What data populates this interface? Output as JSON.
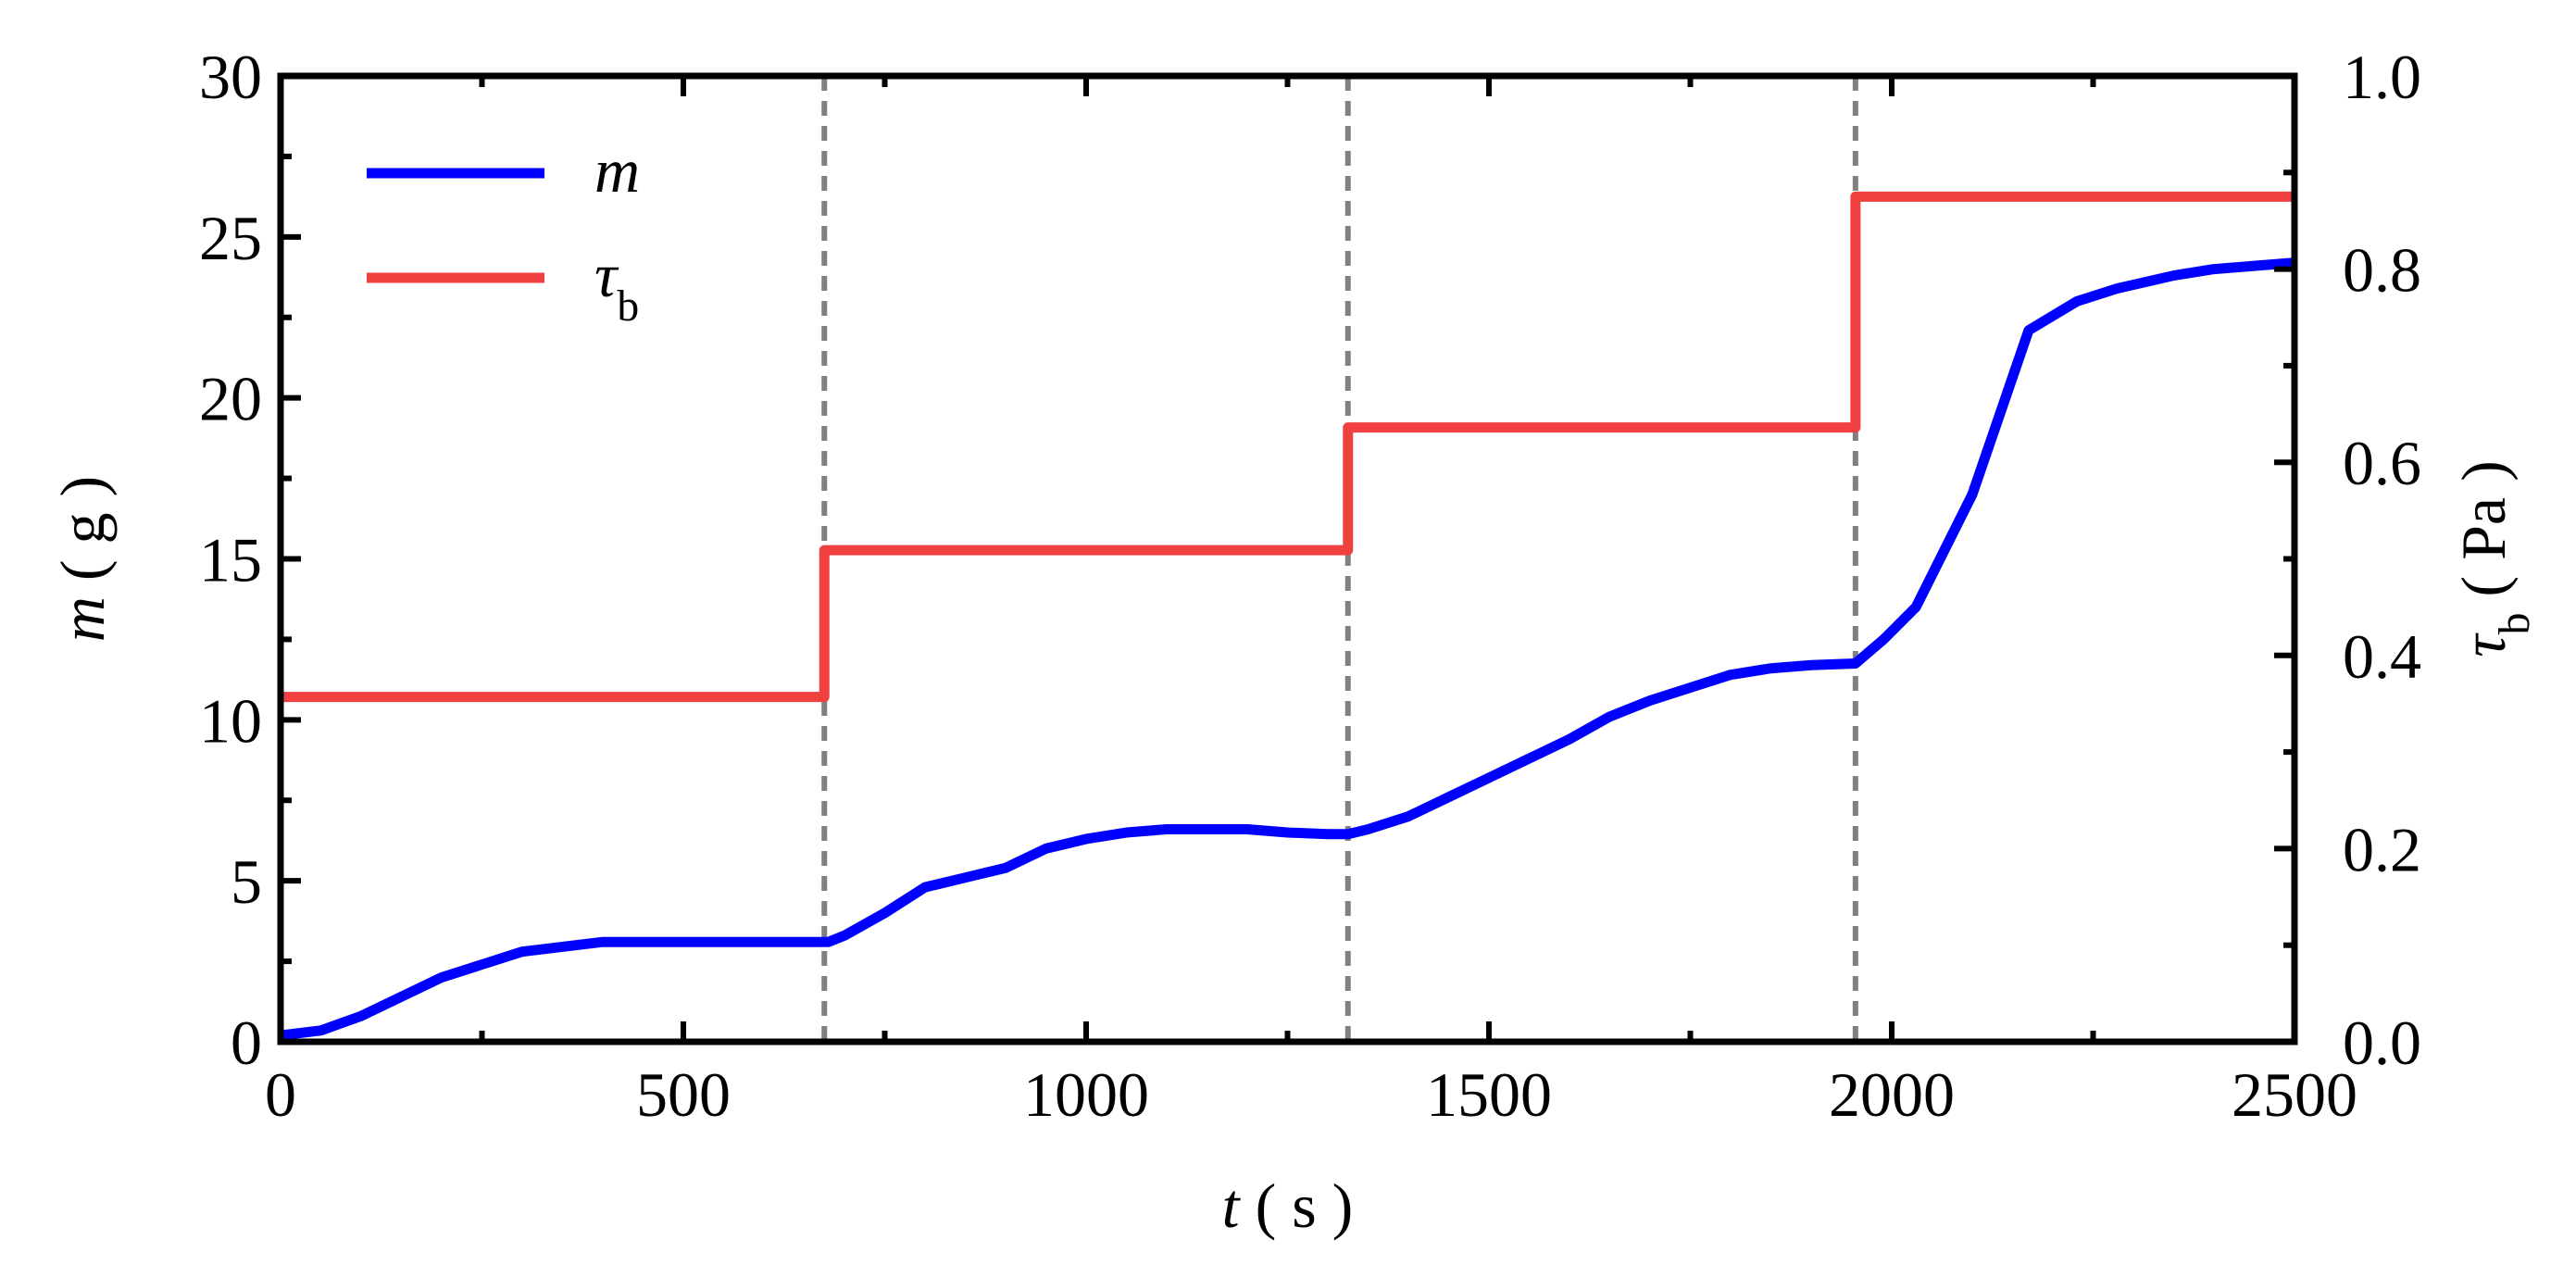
{
  "chart_data": {
    "type": "line",
    "x_label": "t ( s )",
    "y_label": "m ( g )",
    "y2_label": "τb ( Pa )",
    "xlim": [
      0,
      2500
    ],
    "xticks": [
      0,
      500,
      1000,
      1500,
      2000,
      2500
    ],
    "ylim": [
      0,
      30
    ],
    "yticks": [
      0,
      5,
      10,
      15,
      20,
      25,
      30
    ],
    "y2lim": [
      0,
      1
    ],
    "y2ticks": [
      {
        "value": 0,
        "label": "0.0"
      },
      0.2,
      0.4,
      0.6,
      0.8,
      {
        "value": 1,
        "label": "1.0"
      }
    ],
    "vlines": [
      675,
      1325,
      1955
    ],
    "vline_color": "#808080",
    "legend": "upper left",
    "series": [
      {
        "name": "m",
        "color": "#0000ff",
        "x": [
          0,
          50,
          100,
          150,
          200,
          250,
          300,
          350,
          400,
          500,
          600,
          680,
          700,
          750,
          800,
          850,
          900,
          950,
          1000,
          1050,
          1100,
          1150,
          1200,
          1250,
          1300,
          1325,
          1350,
          1400,
          1450,
          1500,
          1550,
          1600,
          1650,
          1700,
          1750,
          1800,
          1850,
          1900,
          1955,
          1990,
          2030,
          2100,
          2170,
          2230,
          2280,
          2350,
          2400,
          2450,
          2500
        ],
        "values": [
          0.2,
          0.35,
          0.8,
          1.4,
          2.0,
          2.4,
          2.8,
          2.95,
          3.1,
          3.1,
          3.1,
          3.1,
          3.3,
          4.0,
          4.8,
          5.1,
          5.4,
          6.0,
          6.3,
          6.5,
          6.6,
          6.6,
          6.6,
          6.5,
          6.45,
          6.45,
          6.6,
          7.0,
          7.6,
          8.2,
          8.8,
          9.4,
          10.1,
          10.6,
          11.0,
          11.4,
          11.6,
          11.7,
          11.75,
          12.5,
          13.5,
          17.0,
          22.1,
          23.0,
          23.4,
          23.8,
          24.0,
          24.1,
          24.2
        ]
      },
      {
        "name": "τb",
        "color": "#f04040",
        "axis": "y2",
        "x": [
          0,
          675,
          675,
          1325,
          1325,
          1955,
          1955,
          2500
        ],
        "values": [
          0.357,
          0.357,
          0.509,
          0.509,
          0.636,
          0.636,
          0.875,
          0.875
        ]
      }
    ]
  }
}
